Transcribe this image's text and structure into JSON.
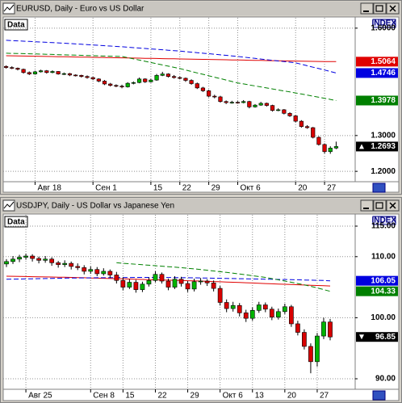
{
  "chart_data": [
    {
      "type": "candlestick",
      "title": "EURUSD, Daily - Euro vs US Dollar",
      "pane_label": "Data",
      "axis_label": "INDEX",
      "categories": [
        null,
        null,
        null,
        null,
        null,
        "Авг 18",
        null,
        null,
        null,
        null,
        null,
        null,
        null,
        null,
        null,
        "Сен 1",
        null,
        null,
        null,
        null,
        null,
        null,
        null,
        null,
        null,
        "15",
        null,
        null,
        null,
        null,
        "22",
        null,
        null,
        null,
        null,
        "29",
        null,
        null,
        null,
        null,
        "Окт 6",
        null,
        null,
        null,
        null,
        null,
        null,
        null,
        null,
        null,
        "20",
        null,
        null,
        null,
        null,
        "27",
        null,
        null
      ],
      "ohlc": [
        [
          1.493,
          1.496,
          1.487,
          1.49
        ],
        [
          1.49,
          1.4935,
          1.4855,
          1.488
        ],
        [
          1.488,
          1.49,
          1.482,
          1.485
        ],
        [
          1.485,
          1.487,
          1.473,
          1.476
        ],
        [
          1.476,
          1.479,
          1.469,
          1.472
        ],
        [
          1.472,
          1.481,
          1.47,
          1.478
        ],
        [
          1.478,
          1.484,
          1.476,
          1.481
        ],
        [
          1.481,
          1.483,
          1.473,
          1.476
        ],
        [
          1.476,
          1.482,
          1.474,
          1.479
        ],
        [
          1.479,
          1.48,
          1.47,
          1.472
        ],
        [
          1.472,
          1.476,
          1.469,
          1.473
        ],
        [
          1.473,
          1.475,
          1.466,
          1.469
        ],
        [
          1.469,
          1.471,
          1.465,
          1.468
        ],
        [
          1.468,
          1.47,
          1.462,
          1.465
        ],
        [
          1.465,
          1.468,
          1.459,
          1.462
        ],
        [
          1.462,
          1.464,
          1.455,
          1.458
        ],
        [
          1.458,
          1.46,
          1.449,
          1.452
        ],
        [
          1.452,
          1.455,
          1.441,
          1.444
        ],
        [
          1.444,
          1.447,
          1.437,
          1.44
        ],
        [
          1.44,
          1.443,
          1.435,
          1.438
        ],
        [
          1.438,
          1.442,
          1.432,
          1.436
        ],
        [
          1.436,
          1.449,
          1.434,
          1.446
        ],
        [
          1.446,
          1.451,
          1.443,
          1.448
        ],
        [
          1.448,
          1.462,
          1.446,
          1.458
        ],
        [
          1.458,
          1.46,
          1.447,
          1.45
        ],
        [
          1.45,
          1.458,
          1.448,
          1.455
        ],
        [
          1.455,
          1.472,
          1.453,
          1.468
        ],
        [
          1.468,
          1.478,
          1.466,
          1.472
        ],
        [
          1.472,
          1.474,
          1.462,
          1.465
        ],
        [
          1.465,
          1.469,
          1.459,
          1.462
        ],
        [
          1.462,
          1.465,
          1.457,
          1.46
        ],
        [
          1.46,
          1.462,
          1.45,
          1.454
        ],
        [
          1.454,
          1.457,
          1.442,
          1.445
        ],
        [
          1.445,
          1.448,
          1.43,
          1.433
        ],
        [
          1.433,
          1.436,
          1.422,
          1.425
        ],
        [
          1.425,
          1.428,
          1.407,
          1.41
        ],
        [
          1.41,
          1.414,
          1.404,
          1.408
        ],
        [
          1.408,
          1.411,
          1.392,
          1.395
        ],
        [
          1.395,
          1.398,
          1.388,
          1.392
        ],
        [
          1.392,
          1.397,
          1.389,
          1.393
        ],
        [
          1.393,
          1.396,
          1.389,
          1.392
        ],
        [
          1.392,
          1.399,
          1.39,
          1.395
        ],
        [
          1.395,
          1.397,
          1.376,
          1.38
        ],
        [
          1.38,
          1.388,
          1.378,
          1.385
        ],
        [
          1.385,
          1.394,
          1.383,
          1.39
        ],
        [
          1.39,
          1.392,
          1.381,
          1.384
        ],
        [
          1.384,
          1.386,
          1.367,
          1.37
        ],
        [
          1.37,
          1.376,
          1.368,
          1.372
        ],
        [
          1.372,
          1.374,
          1.359,
          1.362
        ],
        [
          1.362,
          1.365,
          1.352,
          1.355
        ],
        [
          1.355,
          1.357,
          1.337,
          1.34
        ],
        [
          1.34,
          1.343,
          1.322,
          1.325
        ],
        [
          1.325,
          1.329,
          1.319,
          1.322
        ],
        [
          1.322,
          1.324,
          1.292,
          1.295
        ],
        [
          1.295,
          1.298,
          1.272,
          1.275
        ],
        [
          1.275,
          1.278,
          1.25,
          1.255
        ],
        [
          1.255,
          1.27,
          1.249,
          1.265
        ],
        [
          1.265,
          1.283,
          1.262,
          1.2693
        ]
      ],
      "up_color": "#00b400",
      "down_color": "#d80000",
      "lines": [
        {
          "color": "#e00000",
          "dashed": false,
          "last_label": true,
          "values": [
            1.523,
            1.5227,
            1.5224,
            1.5221,
            1.5218,
            1.5215,
            1.5212,
            1.5209,
            1.5206,
            1.5203,
            1.52,
            1.5197,
            1.5194,
            1.5191,
            1.5188,
            1.5185,
            1.5182,
            1.5179,
            1.5176,
            1.5173,
            1.517,
            1.5167,
            1.5164,
            1.5161,
            1.5158,
            1.5155,
            1.5152,
            1.5149,
            1.5146,
            1.5143,
            1.514,
            1.5137,
            1.5134,
            1.5131,
            1.5128,
            1.5125,
            1.5122,
            1.5119,
            1.5116,
            1.5113,
            1.511,
            1.5107,
            1.5104,
            1.5101,
            1.5098,
            1.5095,
            1.5092,
            1.5089,
            1.5086,
            1.5083,
            1.508,
            1.5077,
            1.5074,
            1.5071,
            1.5069,
            1.5067,
            1.5065,
            1.5064
          ]
        },
        {
          "color": "#0000e0",
          "dashed": true,
          "last_label": true,
          "values": [
            1.566,
            1.5652,
            1.5644,
            1.5636,
            1.5628,
            1.562,
            1.5612,
            1.5604,
            1.5596,
            1.5588,
            1.558,
            1.557,
            1.556,
            1.555,
            1.554,
            1.553,
            1.552,
            1.551,
            1.55,
            1.549,
            1.548,
            1.5468,
            1.5456,
            1.5444,
            1.5432,
            1.542,
            1.5408,
            1.5396,
            1.5384,
            1.5372,
            1.536,
            1.5345,
            1.533,
            1.5315,
            1.53,
            1.5285,
            1.527,
            1.5255,
            1.524,
            1.5225,
            1.521,
            1.5192,
            1.5174,
            1.5156,
            1.5138,
            1.512,
            1.5102,
            1.5084,
            1.5066,
            1.5048,
            1.503,
            1.499,
            1.495,
            1.491,
            1.487,
            1.483,
            1.479,
            1.4746
          ]
        },
        {
          "color": "#008000",
          "dashed": true,
          "last_label": true,
          "values": [
            1.53,
            1.5296,
            1.5292,
            1.5288,
            1.5284,
            1.528,
            1.5275,
            1.527,
            1.5265,
            1.526,
            1.5255,
            1.525,
            1.5245,
            1.524,
            1.5235,
            1.523,
            1.5225,
            1.522,
            1.5215,
            1.5212,
            1.521,
            1.5176,
            1.5142,
            1.5108,
            1.5074,
            1.504,
            1.5006,
            1.4972,
            1.4938,
            1.4904,
            1.487,
            1.483,
            1.479,
            1.475,
            1.471,
            1.467,
            1.463,
            1.459,
            1.455,
            1.451,
            1.447,
            1.4442,
            1.4414,
            1.4386,
            1.4358,
            1.433,
            1.4302,
            1.4274,
            1.4246,
            1.4218,
            1.419,
            1.416,
            1.413,
            1.41,
            1.407,
            1.404,
            1.401,
            1.3978
          ]
        }
      ],
      "ylim": [
        1.171,
        1.629
      ],
      "yticks": [
        {
          "value": 1.2,
          "label": "1.2000"
        },
        {
          "value": 1.3,
          "label": "1.3000"
        },
        {
          "value": 1.6,
          "label": "1.6000"
        }
      ],
      "grid": true
    },
    {
      "type": "candlestick",
      "title": "USDJPY, Daily - US Dollar vs Japanese Yen",
      "pane_label": "Data",
      "axis_label": "INDEX",
      "categories": [
        null,
        null,
        null,
        "Авг 25",
        null,
        null,
        null,
        null,
        null,
        null,
        null,
        null,
        null,
        "Сен 8",
        null,
        null,
        null,
        null,
        "15",
        null,
        null,
        null,
        null,
        "22",
        null,
        null,
        null,
        null,
        "29",
        null,
        null,
        null,
        null,
        "Окт 6",
        null,
        null,
        null,
        null,
        "13",
        null,
        null,
        null,
        null,
        "20",
        null,
        null,
        null,
        null,
        "27",
        null,
        null
      ],
      "ohlc": [
        [
          108.8,
          109.6,
          108.3,
          109.2
        ],
        [
          109.2,
          110.1,
          108.8,
          109.6
        ],
        [
          109.6,
          110.3,
          109.1,
          109.9
        ],
        [
          109.9,
          110.5,
          109.5,
          110.1
        ],
        [
          110.1,
          110.4,
          109.2,
          109.7
        ],
        [
          109.7,
          110.0,
          108.9,
          109.4
        ],
        [
          109.4,
          110.1,
          109.0,
          109.6
        ],
        [
          109.6,
          109.9,
          108.5,
          109.0
        ],
        [
          109.0,
          109.3,
          108.2,
          108.7
        ],
        [
          108.7,
          109.4,
          108.3,
          108.9
        ],
        [
          108.9,
          109.2,
          107.9,
          108.4
        ],
        [
          108.4,
          108.9,
          107.8,
          108.2
        ],
        [
          108.2,
          108.6,
          107.1,
          107.6
        ],
        [
          107.6,
          108.4,
          107.2,
          107.9
        ],
        [
          107.9,
          108.3,
          106.8,
          107.2
        ],
        [
          107.2,
          108.1,
          106.9,
          107.6
        ],
        [
          107.6,
          107.9,
          106.5,
          107.0
        ],
        [
          107.0,
          107.5,
          105.6,
          106.1
        ],
        [
          106.1,
          106.6,
          104.5,
          105.0
        ],
        [
          105.0,
          106.3,
          104.7,
          105.8
        ],
        [
          105.8,
          106.2,
          104.1,
          104.6
        ],
        [
          104.6,
          105.9,
          104.2,
          105.5
        ],
        [
          105.5,
          106.6,
          105.1,
          106.1
        ],
        [
          106.1,
          107.6,
          105.8,
          107.1
        ],
        [
          107.1,
          107.4,
          105.6,
          106.0
        ],
        [
          106.0,
          106.4,
          104.5,
          105.0
        ],
        [
          105.0,
          106.8,
          104.7,
          106.3
        ],
        [
          106.3,
          106.7,
          105.1,
          105.6
        ],
        [
          105.6,
          106.0,
          104.2,
          104.7
        ],
        [
          104.7,
          106.4,
          104.3,
          105.9
        ],
        [
          105.9,
          106.5,
          105.4,
          106.0
        ],
        [
          106.0,
          106.3,
          105.2,
          105.7
        ],
        [
          105.7,
          106.1,
          104.3,
          104.8
        ],
        [
          104.8,
          105.2,
          102.0,
          102.5
        ],
        [
          102.5,
          103.0,
          100.9,
          101.5
        ],
        [
          101.5,
          102.6,
          101.0,
          102.0
        ],
        [
          102.0,
          102.4,
          100.2,
          100.8
        ],
        [
          100.8,
          101.3,
          99.3,
          99.9
        ],
        [
          99.9,
          101.7,
          99.5,
          101.2
        ],
        [
          101.2,
          102.6,
          100.8,
          102.1
        ],
        [
          102.1,
          102.5,
          100.9,
          101.4
        ],
        [
          101.4,
          101.8,
          99.6,
          100.1
        ],
        [
          100.1,
          101.5,
          99.7,
          101.0
        ],
        [
          101.0,
          102.3,
          100.6,
          101.8
        ],
        [
          101.8,
          102.1,
          98.5,
          99.0
        ],
        [
          99.0,
          99.5,
          97.1,
          97.6
        ],
        [
          97.6,
          98.1,
          94.8,
          95.3
        ],
        [
          95.3,
          95.8,
          90.9,
          92.8
        ],
        [
          92.8,
          97.5,
          92.0,
          97.0
        ],
        [
          97.0,
          100.0,
          96.5,
          99.3
        ],
        [
          99.3,
          99.8,
          96.3,
          96.85
        ]
      ],
      "up_color": "#00b400",
      "down_color": "#d80000",
      "lines": [
        {
          "color": "#e00000",
          "dashed": false,
          "last_label": false,
          "values": [
            106.8,
            106.78,
            106.76,
            106.74,
            106.72,
            106.7,
            106.68,
            106.66,
            106.64,
            106.62,
            106.6,
            106.57,
            106.54,
            106.51,
            106.48,
            106.45,
            106.42,
            106.39,
            106.36,
            106.33,
            106.3,
            106.27,
            106.24,
            106.21,
            106.18,
            106.15,
            106.12,
            106.09,
            106.06,
            106.03,
            106.0,
            105.96,
            105.92,
            105.88,
            105.84,
            105.8,
            105.76,
            105.72,
            105.68,
            105.64,
            105.6,
            105.56,
            105.52,
            105.48,
            105.44,
            105.4,
            105.36,
            105.32,
            105.28,
            105.24,
            105.2
          ]
        },
        {
          "color": "#0000e0",
          "dashed": true,
          "last_label": true,
          "values": [
            106.3,
            106.32,
            106.34,
            106.36,
            106.38,
            106.4,
            106.42,
            106.44,
            106.46,
            106.48,
            106.5,
            106.51,
            106.52,
            106.53,
            106.54,
            106.55,
            106.56,
            106.57,
            106.58,
            106.59,
            106.6,
            106.6,
            106.6,
            106.59,
            106.59,
            106.58,
            106.57,
            106.56,
            106.55,
            106.53,
            106.51,
            106.49,
            106.47,
            106.45,
            106.43,
            106.41,
            106.39,
            106.37,
            106.35,
            106.33,
            106.31,
            106.29,
            106.27,
            106.25,
            106.23,
            106.21,
            106.18,
            106.15,
            106.12,
            106.09,
            106.05
          ]
        },
        {
          "color": "#008000",
          "dashed": true,
          "last_label": true,
          "values": [
            null,
            null,
            null,
            null,
            null,
            null,
            null,
            null,
            null,
            null,
            null,
            null,
            null,
            null,
            null,
            null,
            null,
            109.0,
            108.92,
            108.84,
            108.76,
            108.68,
            108.6,
            108.52,
            108.44,
            108.36,
            108.28,
            108.2,
            108.1,
            108.0,
            107.9,
            107.78,
            107.66,
            107.54,
            107.42,
            107.3,
            107.16,
            107.02,
            106.88,
            106.74,
            106.6,
            106.4,
            106.2,
            106.0,
            105.8,
            105.6,
            105.38,
            105.14,
            104.88,
            104.6,
            104.33
          ]
        }
      ],
      "ylim": [
        88.28,
        116.85
      ],
      "yticks": [
        {
          "value": 90,
          "label": "90.00"
        },
        {
          "value": 100,
          "label": "100.00"
        },
        {
          "value": 110,
          "label": "110.00"
        },
        {
          "value": 115,
          "label": "115.00"
        }
      ],
      "grid": true
    }
  ]
}
